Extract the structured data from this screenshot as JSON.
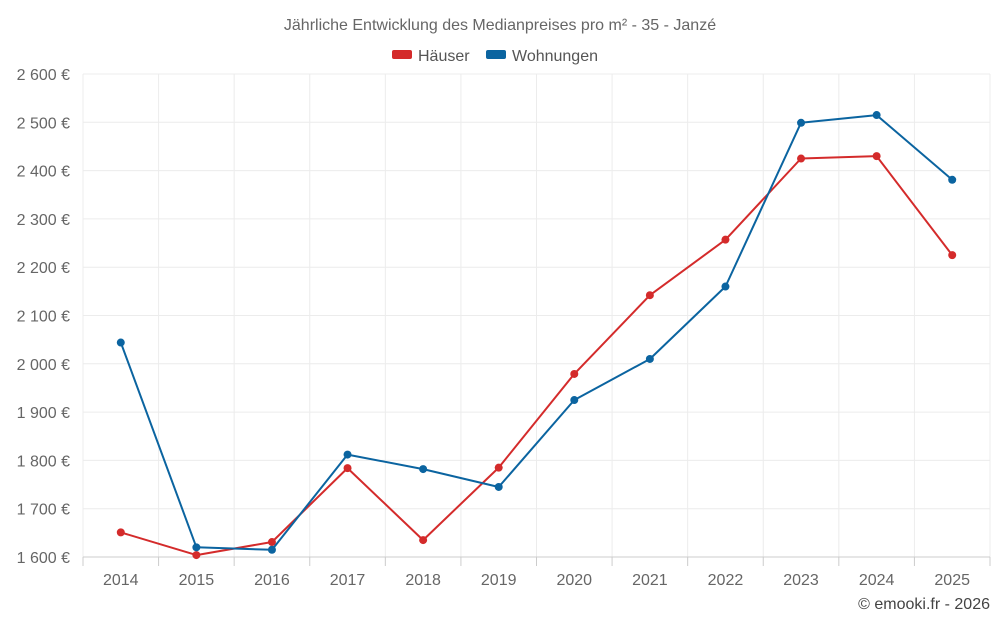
{
  "chart_data": {
    "type": "line",
    "title": "Jährliche Entwicklung des Medianpreises pro m² - 35 - Janzé",
    "categories": [
      "2014",
      "2015",
      "2016",
      "2017",
      "2018",
      "2019",
      "2020",
      "2021",
      "2022",
      "2023",
      "2024",
      "2025"
    ],
    "series": [
      {
        "name": "Häuser",
        "color": "#d42b2b",
        "values": [
          1651,
          1604,
          1631,
          1784,
          1635,
          1785,
          1979,
          2142,
          2257,
          2425,
          2430,
          2225
        ]
      },
      {
        "name": "Wohnungen",
        "color": "#0b64a0",
        "values": [
          2044,
          1620,
          1615,
          1812,
          1782,
          1745,
          1925,
          2010,
          2160,
          2499,
          2515,
          2381
        ]
      }
    ],
    "ylim": [
      1600,
      2600
    ],
    "yticks": [
      1600,
      1700,
      1800,
      1900,
      2000,
      2100,
      2200,
      2300,
      2400,
      2500,
      2600
    ],
    "ytick_labels": [
      "1 600 €",
      "1 700 €",
      "1 800 €",
      "1 900 €",
      "2 000 €",
      "2 100 €",
      "2 200 €",
      "2 300 €",
      "2 400 €",
      "2 500 €",
      "2 600 €"
    ],
    "xlabel": "",
    "ylabel": "",
    "grid": true,
    "legend": "top-center",
    "credit": "© emooki.fr - 2026"
  }
}
